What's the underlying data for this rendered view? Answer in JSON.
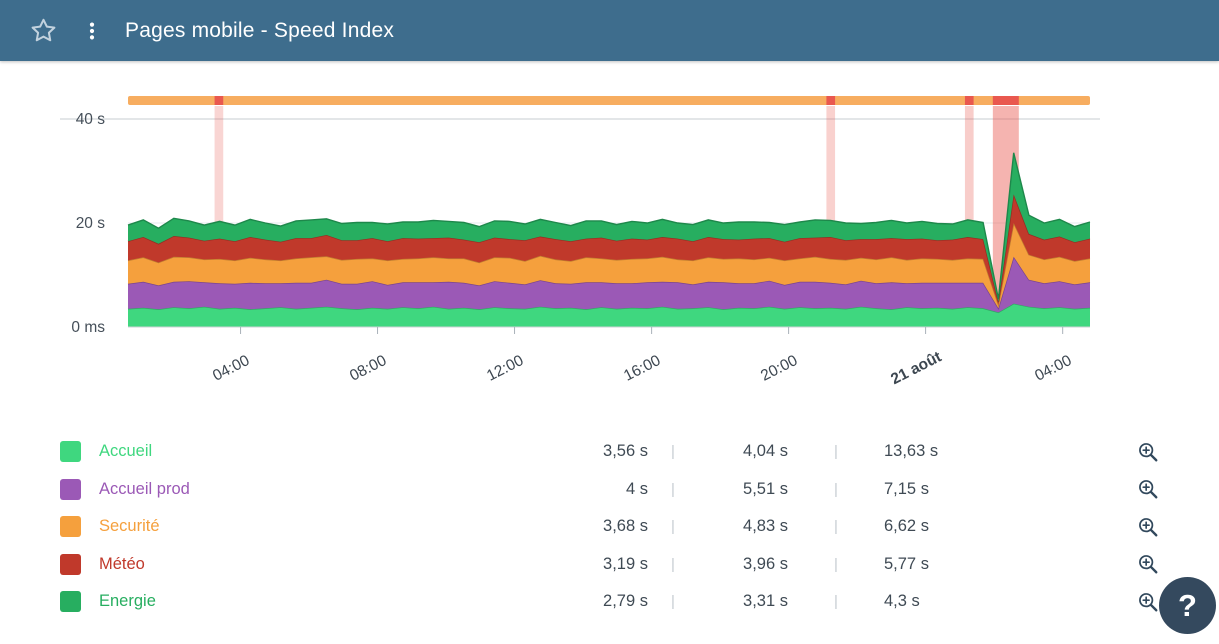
{
  "header": {
    "title": "Pages mobile - Speed Index"
  },
  "help": {
    "label": "?"
  },
  "chart_data": {
    "type": "area",
    "stacked": true,
    "title": "Pages mobile - Speed Index",
    "ylim": [
      0,
      40
    ],
    "y_ticks": [
      {
        "label": "40 s",
        "value": 40
      },
      {
        "label": "20 s",
        "value": 20
      },
      {
        "label": "0 ms",
        "value": 0
      }
    ],
    "x_ticks": [
      {
        "label": "04:00",
        "pos": 0.117,
        "bold": false
      },
      {
        "label": "08:00",
        "pos": 0.2594,
        "bold": false
      },
      {
        "label": "12:00",
        "pos": 0.4018,
        "bold": false
      },
      {
        "label": "16:00",
        "pos": 0.5443,
        "bold": false
      },
      {
        "label": "20:00",
        "pos": 0.6867,
        "bold": false
      },
      {
        "label": "21 août",
        "pos": 0.8291,
        "bold": true
      },
      {
        "label": "04:00",
        "pos": 0.9716,
        "bold": false
      }
    ],
    "status_bar": {
      "color": "#f7ad60",
      "incident_color": "#e9584f"
    },
    "incidents": [
      {
        "start": 0.09,
        "end": 0.099,
        "opacity": 0.25
      },
      {
        "start": 0.726,
        "end": 0.735,
        "opacity": 0.28
      },
      {
        "start": 0.87,
        "end": 0.879,
        "opacity": 0.3
      },
      {
        "start": 0.899,
        "end": 0.926,
        "opacity": 0.45
      }
    ],
    "series": [
      {
        "name": "Accueil",
        "color": "#3fd77f",
        "values": [
          3.5,
          3.7,
          3.4,
          3.8,
          3.6,
          3.9,
          3.5,
          3.7,
          3.4,
          3.6,
          3.8,
          3.5,
          3.7,
          3.9,
          3.6,
          3.4,
          3.7,
          3.5,
          3.8,
          3.6,
          3.9,
          3.5,
          3.7,
          3.4,
          3.8,
          3.6,
          3.5,
          3.9,
          3.6,
          3.7,
          3.4,
          3.8,
          3.5,
          3.7,
          3.6,
          3.9,
          3.5,
          3.6,
          3.8,
          3.4,
          3.7,
          3.6,
          3.9,
          3.5,
          3.8,
          3.6,
          3.7,
          3.5,
          3.9,
          3.6,
          3.4,
          3.8,
          3.6,
          3.7,
          3.5,
          3.8,
          3.6,
          2.8,
          4.5,
          3.9,
          3.6,
          3.8,
          3.5,
          3.7
        ]
      },
      {
        "name": "Accueil prod",
        "color": "#9b59b6",
        "values": [
          4.8,
          5.0,
          4.6,
          4.9,
          5.2,
          4.7,
          4.9,
          4.6,
          5.1,
          4.8,
          4.6,
          5.0,
          4.8,
          5.2,
          4.7,
          4.9,
          5.1,
          4.6,
          4.8,
          5.0,
          4.7,
          5.2,
          4.8,
          4.6,
          5.0,
          4.9,
          4.7,
          5.1,
          4.8,
          4.6,
          5.2,
          4.8,
          4.9,
          4.7,
          5.0,
          4.8,
          5.1,
          4.6,
          4.9,
          5.2,
          4.7,
          4.8,
          5.0,
          4.6,
          4.9,
          5.1,
          4.8,
          4.7,
          5.0,
          4.8,
          5.2,
          4.6,
          4.9,
          4.8,
          5.0,
          4.7,
          4.9,
          0.8,
          9.0,
          5.2,
          4.8,
          5.0,
          4.7,
          4.9
        ]
      },
      {
        "name": "Securité",
        "color": "#f5a03d",
        "values": [
          4.5,
          4.7,
          4.4,
          4.8,
          4.6,
          4.4,
          4.7,
          4.5,
          4.8,
          4.6,
          4.4,
          4.7,
          4.9,
          4.5,
          4.6,
          4.8,
          4.4,
          4.7,
          4.5,
          4.6,
          4.8,
          4.5,
          4.7,
          4.4,
          4.6,
          4.8,
          4.5,
          4.7,
          4.6,
          4.4,
          4.8,
          4.6,
          4.5,
          4.7,
          4.6,
          4.8,
          4.4,
          4.6,
          4.7,
          4.5,
          4.8,
          4.6,
          4.4,
          4.7,
          4.5,
          4.8,
          4.6,
          4.7,
          4.4,
          4.6,
          4.8,
          4.5,
          4.7,
          4.6,
          4.4,
          4.7,
          4.6,
          0.7,
          6.5,
          4.8,
          4.6,
          4.7,
          4.5,
          4.6
        ]
      },
      {
        "name": "Météo",
        "color": "#c0392b",
        "values": [
          3.7,
          3.9,
          3.6,
          4.0,
          3.8,
          3.6,
          3.9,
          3.7,
          4.0,
          3.8,
          3.6,
          3.9,
          3.7,
          4.1,
          3.8,
          3.6,
          3.9,
          3.7,
          4.0,
          3.8,
          3.7,
          4.0,
          3.6,
          3.9,
          3.8,
          3.6,
          4.0,
          3.7,
          3.9,
          3.8,
          3.6,
          4.0,
          3.7,
          3.9,
          3.6,
          3.8,
          4.0,
          3.7,
          3.9,
          3.8,
          3.6,
          4.0,
          3.8,
          3.6,
          3.9,
          3.7,
          4.2,
          3.8,
          3.6,
          3.9,
          3.7,
          4.0,
          3.8,
          3.6,
          3.9,
          4.1,
          3.8,
          0.5,
          5.5,
          4.0,
          3.8,
          3.9,
          3.6,
          3.8
        ]
      },
      {
        "name": "Energie",
        "color": "#27ae60",
        "values": [
          3.1,
          3.3,
          3.0,
          3.4,
          3.2,
          3.0,
          3.3,
          3.1,
          3.4,
          3.2,
          3.0,
          3.3,
          3.5,
          3.1,
          3.2,
          3.4,
          3.0,
          3.3,
          3.1,
          3.2,
          3.4,
          3.1,
          3.3,
          3.0,
          3.2,
          3.4,
          3.1,
          3.3,
          3.2,
          3.0,
          3.4,
          3.2,
          3.1,
          3.3,
          3.2,
          3.4,
          3.0,
          3.2,
          3.3,
          3.1,
          3.4,
          3.2,
          3.0,
          3.3,
          3.1,
          3.4,
          3.2,
          3.3,
          3.0,
          3.2,
          3.4,
          3.1,
          3.3,
          3.2,
          3.0,
          3.3,
          3.2,
          0.6,
          8.0,
          3.6,
          3.2,
          3.3,
          3.0,
          3.2
        ]
      }
    ]
  },
  "legend": {
    "separator": "|",
    "rows": [
      {
        "label": "Accueil",
        "color": "#3fd77f",
        "values": [
          "3,56 s",
          "4,04 s",
          "13,63 s"
        ]
      },
      {
        "label": "Accueil prod",
        "color": "#9b59b6",
        "values": [
          "4 s",
          "5,51 s",
          "7,15 s"
        ]
      },
      {
        "label": "Securité",
        "color": "#f5a03d",
        "values": [
          "3,68 s",
          "4,83 s",
          "6,62 s"
        ]
      },
      {
        "label": "Météo",
        "color": "#c0392b",
        "values": [
          "3,19 s",
          "3,96 s",
          "5,77 s"
        ]
      },
      {
        "label": "Energie",
        "color": "#27ae60",
        "values": [
          "2,79 s",
          "3,31 s",
          "4,3 s"
        ]
      }
    ]
  }
}
